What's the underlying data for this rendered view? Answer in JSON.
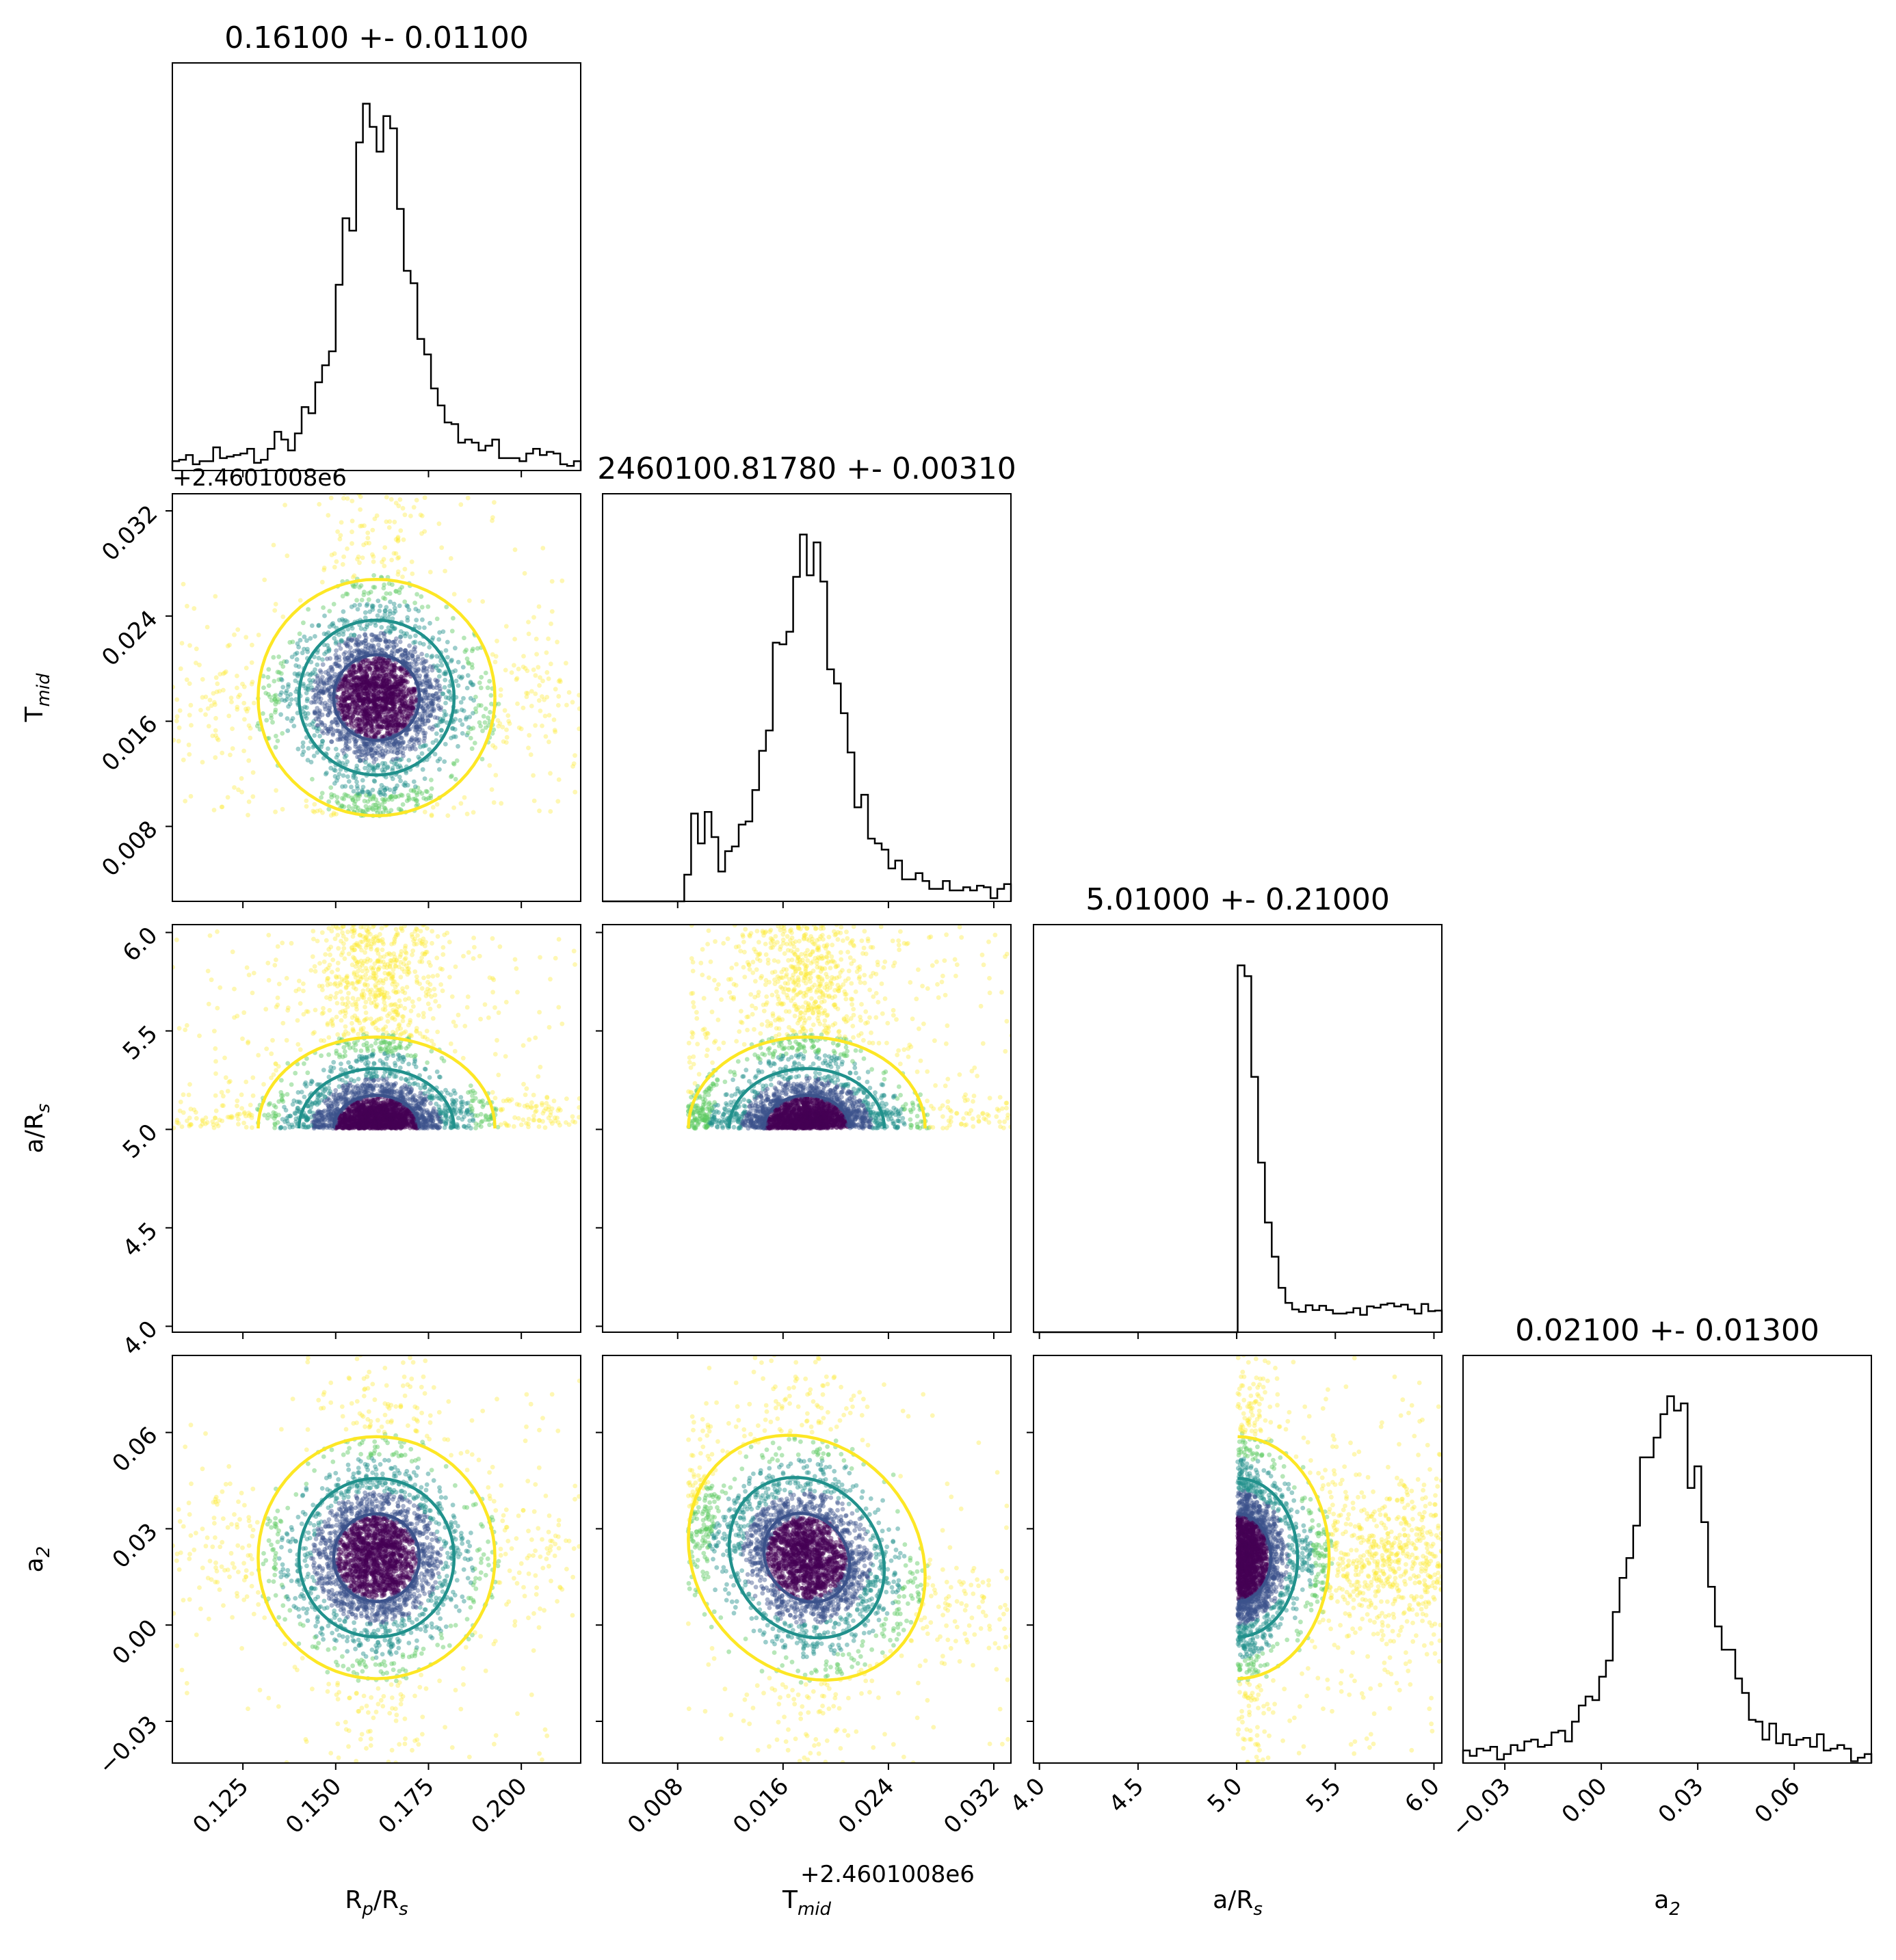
{
  "figure": {
    "offset_text": "+2.4601008e6"
  },
  "chart_data": {
    "type": "corner",
    "description_of_panels": "lower-triangle scatter + density contours, diagonal histograms",
    "params": [
      {
        "key": "rp",
        "label_main": "R",
        "label_sub1": "p",
        "label_mid": "/R",
        "label_sub2": "s",
        "title": "0.16100 +- 0.01100",
        "range": [
          0.106,
          0.216
        ],
        "ticks": [
          0.125,
          0.15,
          0.175,
          0.2
        ],
        "tick_labels": [
          "0.125",
          "0.150",
          "0.175",
          "0.200"
        ],
        "mean": 0.161,
        "sigma": 0.011
      },
      {
        "key": "tmid",
        "label_main": "T",
        "label_sub1": "mid",
        "label_mid": "",
        "label_sub2": "",
        "title": "2460100.81780 +- 0.00310",
        "range": [
          0.0023,
          0.0333
        ],
        "ticks": [
          0.008,
          0.016,
          0.024,
          0.032
        ],
        "tick_labels": [
          "0.008",
          "0.016",
          "0.024",
          "0.032"
        ],
        "mean": 0.0178,
        "sigma": 0.0031
      },
      {
        "key": "ars",
        "label_main": "a/R",
        "label_sub1": "s",
        "label_mid": "",
        "label_sub2": "",
        "title": "5.01000 +- 0.21000",
        "range": [
          3.97,
          6.04
        ],
        "ticks": [
          4.0,
          4.5,
          5.0,
          5.5,
          6.0
        ],
        "tick_labels": [
          "4.0",
          "4.5",
          "5.0",
          "5.5",
          "6.0"
        ],
        "mean": 5.01,
        "sigma": 0.21
      },
      {
        "key": "a2",
        "label_main": "a",
        "label_sub1": "2",
        "label_mid": "",
        "label_sub2": "",
        "title": "0.02100 +- 0.01300",
        "range": [
          -0.043,
          0.084
        ],
        "ticks": [
          -0.03,
          0.0,
          0.03,
          0.06
        ],
        "tick_labels": [
          "−0.03",
          "0.00",
          "0.03",
          "0.06"
        ],
        "mean": 0.021,
        "sigma": 0.013
      }
    ],
    "colors": {
      "contour_inner": "#3b528b",
      "contour_mid": "#21918c",
      "contour_outer": "#fde725",
      "scatter_core": "#440154",
      "histogram_line": "#000000"
    }
  }
}
